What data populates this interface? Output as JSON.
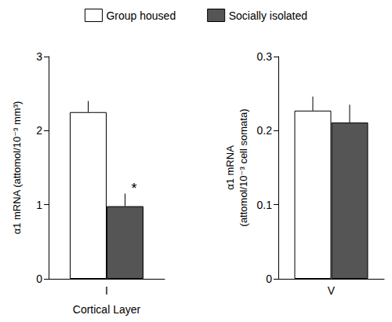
{
  "chart_data": [
    {
      "type": "bar",
      "legend": "top",
      "x_label": "Cortical Layer",
      "y_label": "α1 mRNA (attomol/10⁻³ mm³)",
      "categories": [
        "I"
      ],
      "series": [
        {
          "name": "Group housed",
          "color": "#ffffff",
          "values": [
            2.25
          ],
          "errors": [
            0.15
          ]
        },
        {
          "name": "Socially isolated",
          "color": "#555555",
          "values": [
            0.98
          ],
          "errors": [
            0.17
          ]
        }
      ],
      "ylim": [
        0,
        3
      ],
      "yticks": [
        0,
        1,
        2,
        3
      ],
      "annotations": [
        {
          "text": "*",
          "series": "Socially isolated",
          "category": "I"
        }
      ]
    },
    {
      "type": "bar",
      "y_label": "α1 mRNA\n(attomol/10⁻³ cell somata)",
      "categories": [
        "V"
      ],
      "series": [
        {
          "name": "Group housed",
          "color": "#ffffff",
          "values": [
            0.227
          ],
          "errors": [
            0.019
          ]
        },
        {
          "name": "Socially isolated",
          "color": "#555555",
          "values": [
            0.211
          ],
          "errors": [
            0.024
          ]
        }
      ],
      "ylim": [
        0,
        0.3
      ],
      "yticks": [
        0,
        0.1,
        0.2,
        0.3
      ]
    }
  ]
}
